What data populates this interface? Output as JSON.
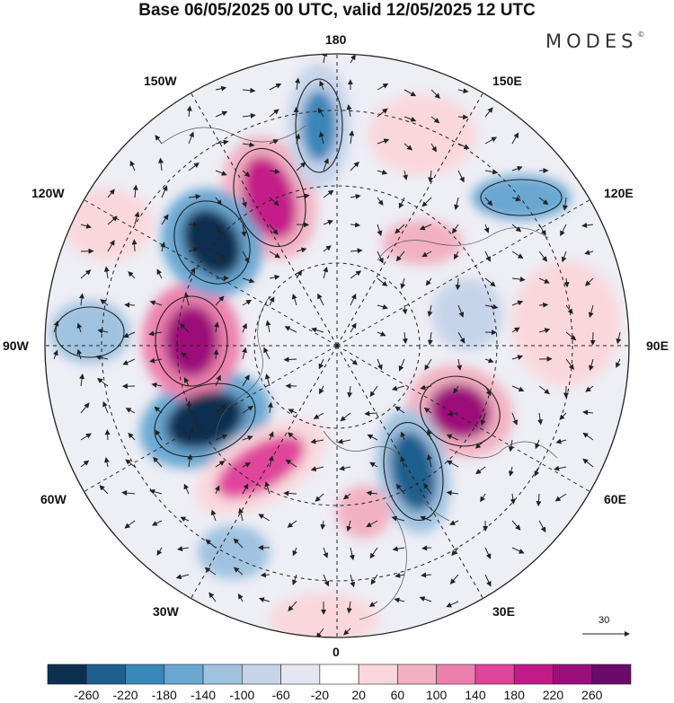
{
  "title": "Base 06/05/2025 00 UTC, valid 12/05/2025 12 UTC",
  "brand": {
    "text": "MODES",
    "mark": "©"
  },
  "longitude_labels": {
    "north": "180",
    "south": "0",
    "west": "90W",
    "east": "90E",
    "nw1": "150W",
    "nw2": "120W",
    "ne1": "150E",
    "ne2": "120E",
    "sw1": "60W",
    "sw2": "30W",
    "se1": "60E",
    "se2": "30E"
  },
  "reference_vector": {
    "value": "30"
  },
  "colorbar": {
    "colors": [
      "#0d2f4f",
      "#1f5f8f",
      "#3a86b8",
      "#6aa7d1",
      "#9fc2e0",
      "#c6d4ea",
      "#e6e6f2",
      "#ffffff",
      "#f9d7dc",
      "#f2b1c2",
      "#ec80ad",
      "#e0449b",
      "#c41a88",
      "#9c0e7a",
      "#6a0a6b"
    ],
    "labels": [
      "-260",
      "-220",
      "-180",
      "-140",
      "-100",
      "-60",
      "-20",
      "20",
      "60",
      "100",
      "140",
      "180",
      "220",
      "260"
    ]
  }
}
